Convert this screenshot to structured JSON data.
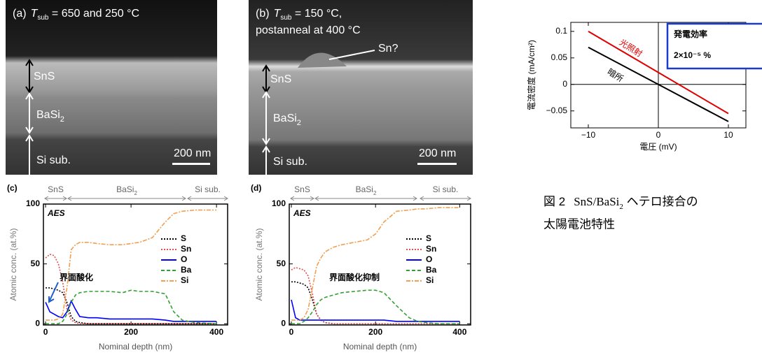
{
  "sem_images": [
    {
      "panel": "(a)",
      "title": {
        "var": "T",
        "sub": "sub",
        "rest": " = 650 and 250 °C"
      },
      "layers": [
        {
          "label": "SnS"
        },
        {
          "label": "BaSi",
          "sub": "2"
        },
        {
          "label": "Si sub."
        }
      ],
      "scale": "200 nm"
    },
    {
      "panel": "(b)",
      "title": {
        "var": "T",
        "sub": "sub",
        "rest": " = 150 °C,"
      },
      "title_line2": "postanneal at 400 °C",
      "annotation": "Sn?",
      "layers": [
        {
          "label": "SnS"
        },
        {
          "label": "BaSi",
          "sub": "2"
        },
        {
          "label": "Si sub."
        }
      ],
      "scale": "200 nm"
    }
  ],
  "chart_data": [
    {
      "type": "line",
      "panel": "(c)",
      "method": "AES",
      "xlabel": "Nominal depth (nm)",
      "ylabel": "Atomic conc. (at.%)",
      "regions": [
        {
          "label": "SnS"
        },
        {
          "label": "BaSi",
          "sub": "2"
        },
        {
          "label": "Si sub."
        }
      ],
      "annotation": "界面酸化",
      "x": [
        0,
        10,
        20,
        30,
        40,
        50,
        60,
        70,
        80,
        100,
        120,
        150,
        180,
        200,
        220,
        250,
        280,
        300,
        320,
        350,
        400
      ],
      "series": [
        {
          "name": "S",
          "color": "#000000",
          "values": [
            30,
            30,
            29,
            28,
            26,
            18,
            6,
            2,
            1,
            0,
            0,
            0,
            0,
            0,
            0,
            0,
            0,
            0,
            0,
            0,
            0
          ]
        },
        {
          "name": "Sn",
          "color": "#e05050",
          "values": [
            55,
            58,
            57,
            50,
            35,
            12,
            3,
            1,
            0,
            0,
            0,
            0,
            0,
            0,
            0,
            0,
            0,
            0,
            0,
            0,
            0
          ]
        },
        {
          "name": "O",
          "color": "#0000ff",
          "values": [
            18,
            10,
            8,
            6,
            5,
            10,
            19,
            12,
            6,
            5,
            5,
            4,
            4,
            4,
            4,
            4,
            3,
            2,
            2,
            2,
            2
          ]
        },
        {
          "name": "Ba",
          "color": "#33a033",
          "values": [
            0,
            0,
            0,
            0,
            2,
            8,
            18,
            24,
            26,
            27,
            27,
            27,
            26,
            28,
            27,
            27,
            25,
            10,
            3,
            1,
            0
          ]
        },
        {
          "name": "Si",
          "color": "#f0a050",
          "values": [
            3,
            3,
            3,
            4,
            8,
            30,
            62,
            66,
            68,
            68,
            67,
            66,
            66,
            67,
            68,
            72,
            85,
            92,
            94,
            95,
            95
          ]
        }
      ],
      "xlim": [
        -5,
        426
      ],
      "ylim": [
        -1,
        100
      ],
      "xticks": [
        0,
        200,
        400
      ],
      "yticks": [
        0,
        50,
        100
      ]
    },
    {
      "type": "line",
      "panel": "(d)",
      "method": "AES",
      "xlabel": "Nominal depth (nm)",
      "ylabel": "Atomic conc. (at.%)",
      "regions": [
        {
          "label": "SnS"
        },
        {
          "label": "BaSi",
          "sub": "2"
        },
        {
          "label": "Si sub."
        }
      ],
      "annotation": "界面酸化抑制",
      "x": [
        0,
        10,
        20,
        30,
        40,
        50,
        60,
        70,
        80,
        100,
        120,
        150,
        180,
        200,
        220,
        250,
        280,
        300,
        320,
        350,
        400
      ],
      "series": [
        {
          "name": "S",
          "color": "#000000",
          "values": [
            35,
            35,
            34,
            33,
            30,
            20,
            8,
            3,
            1,
            0,
            0,
            0,
            0,
            0,
            0,
            0,
            0,
            0,
            0,
            0,
            0
          ]
        },
        {
          "name": "Sn",
          "color": "#e05050",
          "values": [
            45,
            47,
            46,
            45,
            40,
            25,
            8,
            3,
            1,
            0,
            0,
            0,
            0,
            0,
            0,
            0,
            0,
            0,
            0,
            0,
            0
          ]
        },
        {
          "name": "O",
          "color": "#0000ff",
          "values": [
            20,
            5,
            3,
            3,
            3,
            3,
            3,
            3,
            3,
            3,
            3,
            3,
            3,
            3,
            3,
            2,
            2,
            2,
            2,
            2,
            2
          ]
        },
        {
          "name": "Ba",
          "color": "#33a033",
          "values": [
            0,
            0,
            0,
            2,
            5,
            10,
            16,
            20,
            22,
            24,
            26,
            27,
            28,
            28,
            26,
            15,
            5,
            2,
            1,
            0,
            0
          ]
        },
        {
          "name": "Si",
          "color": "#f0a050",
          "values": [
            3,
            3,
            3,
            5,
            12,
            30,
            48,
            55,
            60,
            64,
            66,
            68,
            70,
            75,
            85,
            94,
            95,
            96,
            96,
            97,
            97
          ]
        }
      ],
      "xlim": [
        -5,
        426
      ],
      "ylim": [
        -1,
        100
      ],
      "xticks": [
        0,
        200,
        400
      ],
      "yticks": [
        0,
        50,
        100
      ]
    },
    {
      "type": "line",
      "xlabel": "電圧 (mV)",
      "ylabel": "電流密度 (mA/cm²)",
      "efficiency_label": "発電効率",
      "efficiency_value": "2×10⁻⁵ %",
      "x": [
        -10,
        10
      ],
      "series": [
        {
          "name": "光照射",
          "color": "#e00000",
          "values": [
            0.1,
            -0.055
          ]
        },
        {
          "name": "暗所",
          "color": "#000000",
          "values": [
            0.07,
            -0.07
          ]
        }
      ],
      "xlim": [
        -12.5,
        12.5
      ],
      "ylim": [
        -0.082,
        0.117
      ],
      "xticks": [
        {
          "value": -10,
          "label": "−10"
        },
        0,
        10
      ],
      "yticks": [
        {
          "value": -0.05,
          "label": "−0.05"
        },
        0,
        0.05,
        0.1
      ]
    }
  ],
  "caption": {
    "number": "図 2",
    "text": "SnS/BaSi",
    "sub": "2",
    "text_after": " ヘテロ接合の",
    "line2": "太陽電池特性"
  }
}
